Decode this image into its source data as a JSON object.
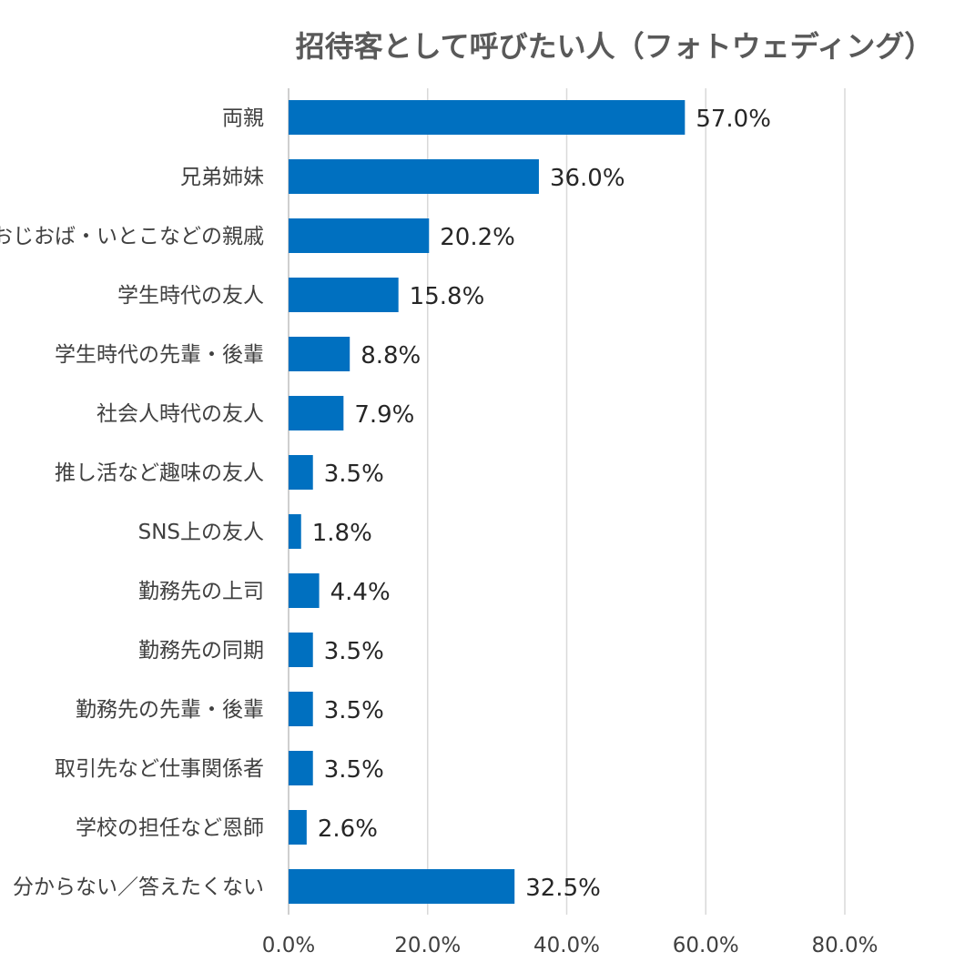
{
  "chart_data": {
    "type": "bar",
    "orientation": "horizontal",
    "title": "招待客として呼びたい人（フォトウェディング）",
    "categories": [
      "両親",
      "兄弟姉妹",
      "おじおば・いとこなどの親戚",
      "学生時代の友人",
      "学生時代の先輩・後輩",
      "社会人時代の友人",
      "推し活など趣味の友人",
      "SNS上の友人",
      "勤務先の上司",
      "勤務先の同期",
      "勤務先の先輩・後輩",
      "取引先など仕事関係者",
      "学校の担任など恩師",
      "分からない／答えたくない"
    ],
    "values": [
      57.0,
      36.0,
      20.2,
      15.8,
      8.8,
      7.9,
      3.5,
      1.8,
      4.4,
      3.5,
      3.5,
      3.5,
      2.6,
      32.5
    ],
    "value_labels": [
      "57.0%",
      "36.0%",
      "20.2%",
      "15.8%",
      "8.8%",
      "7.9%",
      "3.5%",
      "1.8%",
      "4.4%",
      "3.5%",
      "3.5%",
      "3.5%",
      "2.6%",
      "32.5%"
    ],
    "xlim": [
      0,
      80
    ],
    "xticks": [
      0,
      20,
      40,
      60,
      80
    ],
    "xtick_labels": [
      "0.0%",
      "20.0%",
      "40.0%",
      "60.0%",
      "80.0%"
    ],
    "grid": true,
    "xlabel": "",
    "ylabel": "",
    "bar_color": "#0070C0"
  }
}
